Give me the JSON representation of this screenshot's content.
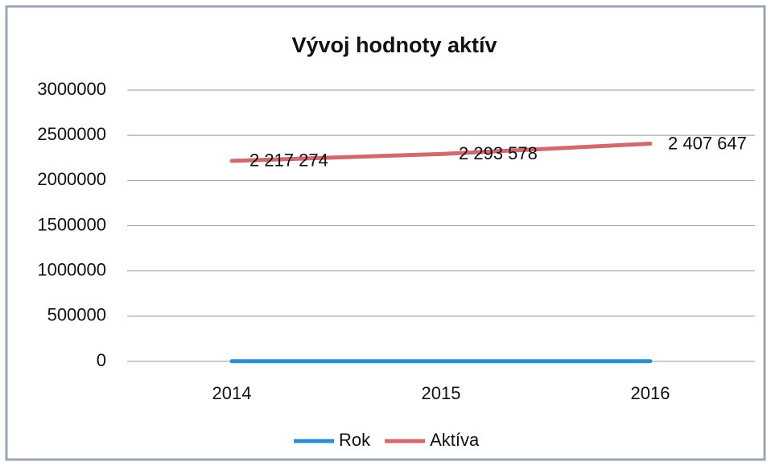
{
  "chart_data": {
    "type": "line",
    "title": "Vývoj hodnoty aktív",
    "categories": [
      "2014",
      "2015",
      "2016"
    ],
    "series": [
      {
        "name": "Rok",
        "color": "#2e8fd0",
        "values": [
          2014,
          2015,
          2016
        ]
      },
      {
        "name": "Aktíva",
        "color": "#d06a70",
        "values": [
          2217274,
          2293578,
          2407647
        ],
        "value_labels": [
          "2 217 274",
          "2 293 578",
          "2 407 647"
        ]
      }
    ],
    "ylim": [
      0,
      3000000
    ],
    "yticks": [
      0,
      500000,
      1000000,
      1500000,
      2000000,
      2500000,
      3000000
    ],
    "grid": true,
    "legend": "bottom"
  }
}
